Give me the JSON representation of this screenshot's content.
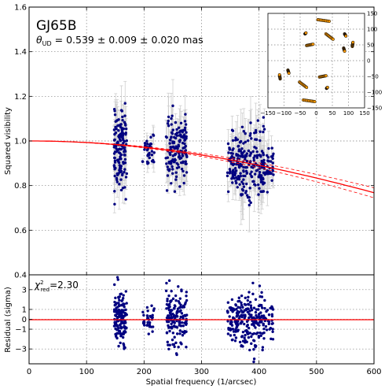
{
  "chart_data": [
    {
      "type": "scatter",
      "panel": "main",
      "title": "GJ65B",
      "annotation_prefix": "θ",
      "annotation_subscript": "UD",
      "annotation_rest": " = 0.539 ± 0.009  ± 0.020 mas",
      "ylabel": "Squared visibility",
      "xlabel": "",
      "xlim": [
        0,
        600
      ],
      "ylim": [
        0.4,
        1.6
      ],
      "xticks": [
        "0",
        "100",
        "200",
        "300",
        "400",
        "500",
        "600"
      ],
      "yticks": [
        "0.4",
        "0.6",
        "0.8",
        "1.0",
        "1.2",
        "1.4",
        "1.6"
      ],
      "grid": true,
      "clusters": [
        {
          "x_range": [
            148,
            170
          ],
          "y_center": 0.96,
          "y_spread": 0.09,
          "n": 140,
          "err": 0.08
        },
        {
          "x_range": [
            197,
            218
          ],
          "y_center": 0.95,
          "y_spread": 0.035,
          "n": 35,
          "err": 0.03
        },
        {
          "x_range": [
            238,
            275
          ],
          "y_center": 0.96,
          "y_spread": 0.08,
          "n": 150,
          "err": 0.08
        },
        {
          "x_range": [
            345,
            368
          ],
          "y_center": 0.91,
          "y_spread": 0.06,
          "n": 80,
          "err": 0.07
        },
        {
          "x_range": [
            368,
            410
          ],
          "y_center": 0.9,
          "y_spread": 0.08,
          "n": 150,
          "err": 0.09
        },
        {
          "x_range": [
            410,
            425
          ],
          "y_center": 0.89,
          "y_spread": 0.05,
          "n": 30,
          "err": 0.06
        }
      ],
      "model_curve": {
        "type": "uniform-disk",
        "theta_mas": 0.539,
        "theta_err_mas": 0.029,
        "x_range": [
          0,
          600
        ],
        "color": "#ff0000"
      },
      "colors": {
        "points": "#000080",
        "errorbars": "#cfcfcf",
        "model": "#ff0000"
      }
    },
    {
      "type": "scatter",
      "panel": "inset-uv",
      "xlim": [
        -150,
        150
      ],
      "ylim": [
        -150,
        150
      ],
      "xticks": [
        "−150",
        "−100",
        "−50",
        "0",
        "50",
        "100",
        "150"
      ],
      "yticks": [
        "−150",
        "−100",
        "−50",
        "0",
        "50",
        "100",
        "150"
      ],
      "grid": true,
      "colors": {
        "points": "#ff9c00"
      },
      "tracks": [
        {
          "x": [
            5,
            40
          ],
          "y": [
            130,
            125
          ]
        },
        {
          "x": [
            -30,
            -10
          ],
          "y": [
            48,
            52
          ]
        },
        {
          "x": [
            30,
            52
          ],
          "y": [
            85,
            68
          ]
        },
        {
          "x": [
            88,
            92
          ],
          "y": [
            85,
            78
          ]
        },
        {
          "x": [
            112,
            114
          ],
          "y": [
            45,
            58
          ]
        },
        {
          "x": [
            -35,
            -32
          ],
          "y": [
            85,
            88
          ]
        },
        {
          "x": [
            -88,
            -85
          ],
          "y": [
            -30,
            -40
          ]
        },
        {
          "x": [
            -112,
            -114
          ],
          "y": [
            -58,
            -45
          ]
        },
        {
          "x": [
            -52,
            -30
          ],
          "y": [
            -68,
            -85
          ]
        },
        {
          "x": [
            -40,
            -5
          ],
          "y": [
            -125,
            -130
          ]
        },
        {
          "x": [
            10,
            30
          ],
          "y": [
            -52,
            -48
          ]
        },
        {
          "x": [
            32,
            35
          ],
          "y": [
            -88,
            -85
          ]
        },
        {
          "x": [
            85,
            88
          ],
          "y": [
            40,
            30
          ]
        }
      ]
    },
    {
      "type": "scatter",
      "panel": "residual",
      "annotation_prefix": "χ",
      "annotation_sup": "2",
      "annotation_sub": "red",
      "annotation_rest": "=2.30",
      "ylabel": "Residual (sigma)",
      "xlabel": "Spatial frequency (1/arcsec)",
      "xlim": [
        0,
        600
      ],
      "ylim": [
        -4.5,
        4.5
      ],
      "xticks": [
        "0",
        "100",
        "200",
        "300",
        "400",
        "500",
        "600"
      ],
      "yticks": [
        "−3",
        "−1",
        "0",
        "1",
        "3"
      ],
      "ytick_values": [
        -3,
        -1,
        0,
        1,
        3
      ],
      "grid": true,
      "zero_line": 0,
      "clusters": [
        {
          "x_range": [
            148,
            170
          ],
          "spread": 1.8,
          "n": 140
        },
        {
          "x_range": [
            197,
            218
          ],
          "spread": 1.0,
          "n": 35
        },
        {
          "x_range": [
            238,
            275
          ],
          "spread": 1.9,
          "n": 150
        },
        {
          "x_range": [
            345,
            368
          ],
          "spread": 1.6,
          "n": 80
        },
        {
          "x_range": [
            368,
            410
          ],
          "spread": 2.2,
          "n": 150
        },
        {
          "x_range": [
            410,
            425
          ],
          "spread": 1.2,
          "n": 30
        }
      ]
    }
  ]
}
